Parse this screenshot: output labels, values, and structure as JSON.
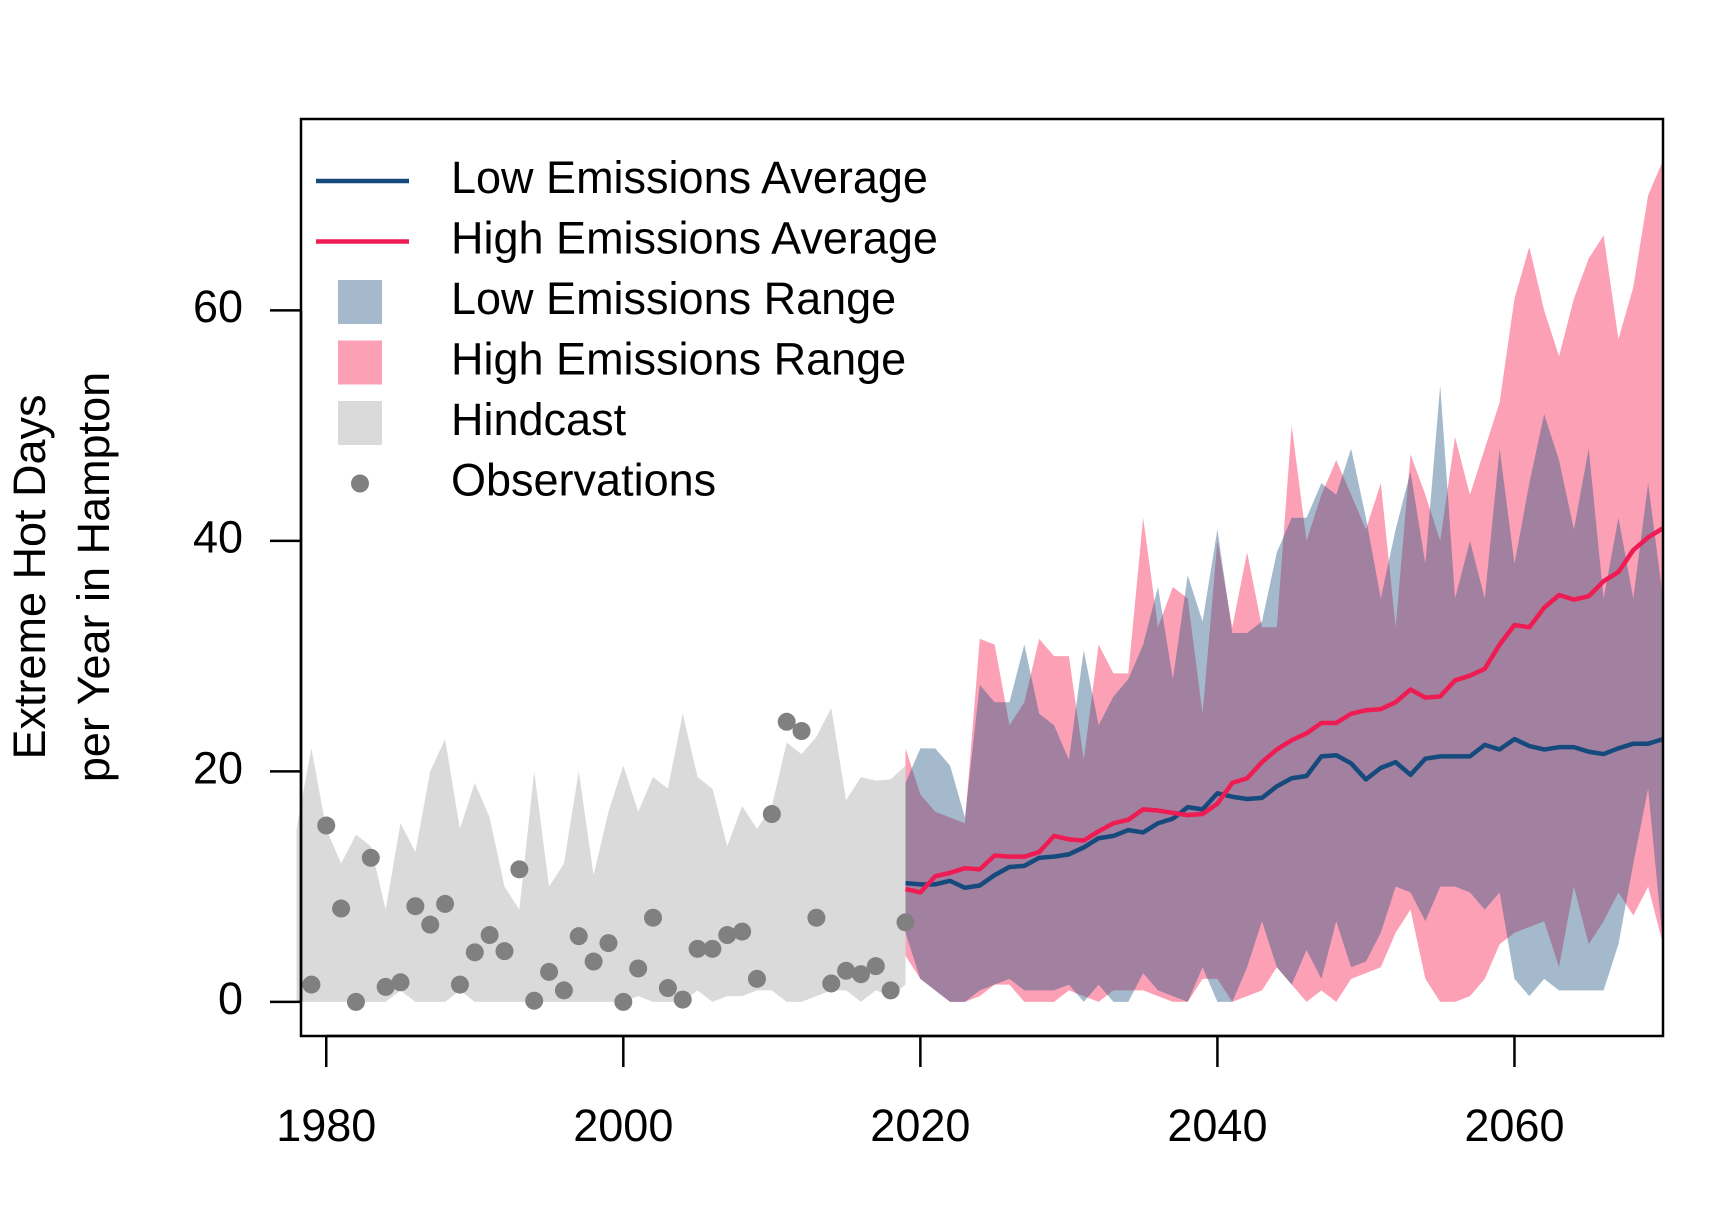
{
  "chart_data": {
    "type": "line",
    "y_label": [
      "Extreme Hot Days",
      "per Year in Hampton"
    ],
    "xlim": [
      1978.3,
      2070
    ],
    "ylim": [
      -2.96,
      76.6
    ],
    "xticks": [
      1980,
      2000,
      2020,
      2040,
      2060
    ],
    "yticks": [
      0,
      20,
      40,
      60
    ],
    "legend": "top-left",
    "series": [
      {
        "name": "Low Emissions Average",
        "type": "line",
        "color": "#174a7c",
        "x": [
          2019,
          2020,
          2021,
          2022,
          2023,
          2024,
          2025,
          2026,
          2027,
          2028,
          2029,
          2030,
          2031,
          2032,
          2033,
          2034,
          2035,
          2036,
          2037,
          2038,
          2039,
          2040,
          2041,
          2042,
          2043,
          2044,
          2045,
          2046,
          2047,
          2048,
          2049,
          2050,
          2051,
          2052,
          2053,
          2054,
          2055,
          2056,
          2057,
          2058,
          2059,
          2060,
          2061,
          2062,
          2063,
          2064,
          2065,
          2066,
          2067,
          2068,
          2069,
          2070
        ],
        "values": [
          10.3,
          10.2,
          10.2,
          10.5,
          9.9,
          10.1,
          11,
          11.7,
          11.8,
          12.5,
          12.6,
          12.8,
          13.4,
          14.2,
          14.4,
          14.9,
          14.7,
          15.5,
          15.9,
          16.9,
          16.7,
          18.1,
          17.8,
          17.6,
          17.7,
          18.7,
          19.4,
          19.6,
          21.3,
          21.4,
          20.7,
          19.3,
          20.3,
          20.8,
          19.7,
          21.1,
          21.3,
          21.3,
          21.3,
          22.3,
          21.9,
          22.8,
          22.2,
          21.9,
          22.1,
          22.1,
          21.7,
          21.5,
          22,
          22.4,
          22.4,
          22.8
        ]
      },
      {
        "name": "High Emissions Average",
        "type": "line",
        "color": "#ee1c52",
        "x": [
          2019,
          2020,
          2021,
          2022,
          2023,
          2024,
          2025,
          2026,
          2027,
          2028,
          2029,
          2030,
          2031,
          2032,
          2033,
          2034,
          2035,
          2036,
          2037,
          2038,
          2039,
          2040,
          2041,
          2042,
          2043,
          2044,
          2045,
          2046,
          2047,
          2048,
          2049,
          2050,
          2051,
          2052,
          2053,
          2054,
          2055,
          2056,
          2057,
          2058,
          2059,
          2060,
          2061,
          2062,
          2063,
          2064,
          2065,
          2066,
          2067,
          2068,
          2069,
          2070
        ],
        "values": [
          9.8,
          9.5,
          10.9,
          11.2,
          11.6,
          11.5,
          12.7,
          12.6,
          12.6,
          13,
          14.4,
          14.1,
          14,
          14.8,
          15.5,
          15.8,
          16.7,
          16.6,
          16.4,
          16.2,
          16.3,
          17.2,
          19,
          19.4,
          20.8,
          21.9,
          22.7,
          23.3,
          24.2,
          24.2,
          25,
          25.3,
          25.4,
          26,
          27.1,
          26.4,
          26.5,
          27.9,
          28.3,
          28.9,
          31,
          32.7,
          32.5,
          34.2,
          35.3,
          34.9,
          35.2,
          36.5,
          37.3,
          39.2,
          40.3,
          41.1
        ]
      },
      {
        "name": "Low Emissions Range",
        "type": "band",
        "color": "rgba(27,79,128,0.4)",
        "x": [
          2019,
          2020,
          2021,
          2022,
          2023,
          2024,
          2025,
          2026,
          2027,
          2028,
          2029,
          2030,
          2031,
          2032,
          2033,
          2034,
          2035,
          2036,
          2037,
          2038,
          2039,
          2040,
          2041,
          2042,
          2043,
          2044,
          2045,
          2046,
          2047,
          2048,
          2049,
          2050,
          2051,
          2052,
          2053,
          2054,
          2055,
          2056,
          2057,
          2058,
          2059,
          2060,
          2061,
          2062,
          2063,
          2064,
          2065,
          2066,
          2067,
          2068,
          2069,
          2070
        ],
        "lower": [
          6,
          2,
          1,
          0,
          0,
          1,
          1.5,
          2,
          1,
          1,
          1,
          1.5,
          0,
          1.5,
          0,
          0,
          2.5,
          1,
          0.5,
          0,
          3,
          0,
          0,
          3,
          7,
          3,
          1.5,
          4.5,
          2,
          7,
          3,
          3.5,
          6,
          10,
          9.5,
          7,
          10,
          10,
          9.5,
          8,
          9.5,
          2,
          0.5,
          2,
          1,
          1,
          1,
          1,
          5,
          12,
          18.5,
          5
        ],
        "upper": [
          19,
          22,
          22,
          20.5,
          16,
          27.5,
          26,
          26,
          31,
          25,
          24,
          21,
          30.5,
          24,
          26.5,
          28,
          31,
          36,
          28,
          37,
          33,
          41,
          32,
          32,
          33,
          39,
          42,
          42,
          45,
          44,
          48,
          42,
          35,
          41,
          46,
          38,
          53.5,
          35,
          40,
          35,
          48,
          38,
          45,
          51,
          47,
          41,
          48,
          35,
          42,
          35,
          45,
          35
        ]
      },
      {
        "name": "High Emissions Range",
        "type": "band",
        "color": "#fca0b6",
        "x": [
          2019,
          2020,
          2021,
          2022,
          2023,
          2024,
          2025,
          2026,
          2027,
          2028,
          2029,
          2030,
          2031,
          2032,
          2033,
          2034,
          2035,
          2036,
          2037,
          2038,
          2039,
          2040,
          2041,
          2042,
          2043,
          2044,
          2045,
          2046,
          2047,
          2048,
          2049,
          2050,
          2051,
          2052,
          2053,
          2054,
          2055,
          2056,
          2057,
          2058,
          2059,
          2060,
          2061,
          2062,
          2063,
          2064,
          2065,
          2066,
          2067,
          2068,
          2069,
          2070
        ],
        "lower": [
          4,
          2,
          1,
          0,
          0,
          0.5,
          1.5,
          1.5,
          0,
          0,
          0,
          1,
          0.5,
          0,
          1,
          1,
          1,
          0.5,
          0,
          0,
          2,
          2,
          0,
          0.5,
          1,
          3,
          1.5,
          0,
          1,
          0,
          2,
          2.5,
          3,
          6,
          8,
          2,
          0,
          0,
          0.5,
          2,
          5,
          6,
          6.5,
          7,
          3,
          10,
          5,
          7,
          9.5,
          7.5,
          10,
          5
        ],
        "upper": [
          22,
          18,
          16.5,
          16,
          15.5,
          31.5,
          31,
          24,
          26,
          31.5,
          30,
          30,
          21,
          31,
          28.5,
          28.5,
          42,
          32.5,
          36,
          35,
          25,
          40,
          32.5,
          39,
          32.5,
          32.5,
          50,
          40,
          44,
          47,
          44,
          41,
          45,
          32.5,
          47.5,
          44,
          40,
          49,
          44,
          48,
          52,
          61,
          65.5,
          60,
          56,
          61,
          64.5,
          66.5,
          57.5,
          62,
          70,
          73
        ]
      },
      {
        "name": "Hindcast",
        "type": "band",
        "color": "#dadada",
        "x": [
          1978,
          1979,
          1980,
          1981,
          1982,
          1983,
          1984,
          1985,
          1986,
          1987,
          1988,
          1989,
          1990,
          1991,
          1992,
          1993,
          1994,
          1995,
          1996,
          1997,
          1998,
          1999,
          2000,
          2001,
          2002,
          2003,
          2004,
          2005,
          2006,
          2007,
          2008,
          2009,
          2010,
          2011,
          2012,
          2013,
          2014,
          2015,
          2016,
          2017,
          2018,
          2019
        ],
        "lower": [
          0,
          0,
          0,
          0,
          0,
          0,
          0,
          1,
          0,
          0,
          0,
          1,
          0,
          0,
          0,
          0,
          0,
          0,
          0,
          0,
          0,
          0,
          0,
          0.5,
          0,
          0,
          0,
          1,
          0,
          0.5,
          0.5,
          1,
          1,
          0,
          0,
          0.5,
          1,
          1,
          0,
          1,
          0.5,
          1.5
        ],
        "upper": [
          15,
          22,
          15,
          12,
          14.5,
          13.5,
          8,
          15.5,
          13,
          20,
          22.8,
          15,
          19,
          16,
          10,
          8,
          20,
          10,
          12,
          20,
          11,
          16.5,
          20.5,
          16.5,
          19.5,
          18.5,
          25,
          19.5,
          18.5,
          13.5,
          17,
          15,
          17,
          22.5,
          21.5,
          23,
          25.5,
          17.5,
          19.5,
          19.2,
          19.3,
          20.5
        ]
      },
      {
        "name": "Observations",
        "type": "scatter",
        "color": "#808080",
        "x": [
          1979,
          1980,
          1981,
          1982,
          1983,
          1984,
          1985,
          1986,
          1987,
          1988,
          1989,
          1990,
          1991,
          1992,
          1993,
          1994,
          1995,
          1996,
          1997,
          1998,
          1999,
          2000,
          2001,
          2002,
          2003,
          2004,
          2005,
          2006,
          2007,
          2008,
          2009,
          2010,
          2011,
          2012,
          2013,
          2014,
          2015,
          2016,
          2017,
          2018,
          2019
        ],
        "values": [
          1.5,
          15.3,
          8.1,
          0,
          12.5,
          1.3,
          1.7,
          8.3,
          6.7,
          8.5,
          1.5,
          4.3,
          5.8,
          4.4,
          11.5,
          0.1,
          2.6,
          1,
          5.7,
          3.5,
          5.1,
          0,
          2.9,
          7.3,
          1.2,
          0.2,
          4.6,
          4.6,
          5.8,
          6.1,
          2,
          16.3,
          24.3,
          23.5,
          7.3,
          1.6,
          2.7,
          2.4,
          3.1,
          1,
          6.9
        ]
      }
    ]
  }
}
